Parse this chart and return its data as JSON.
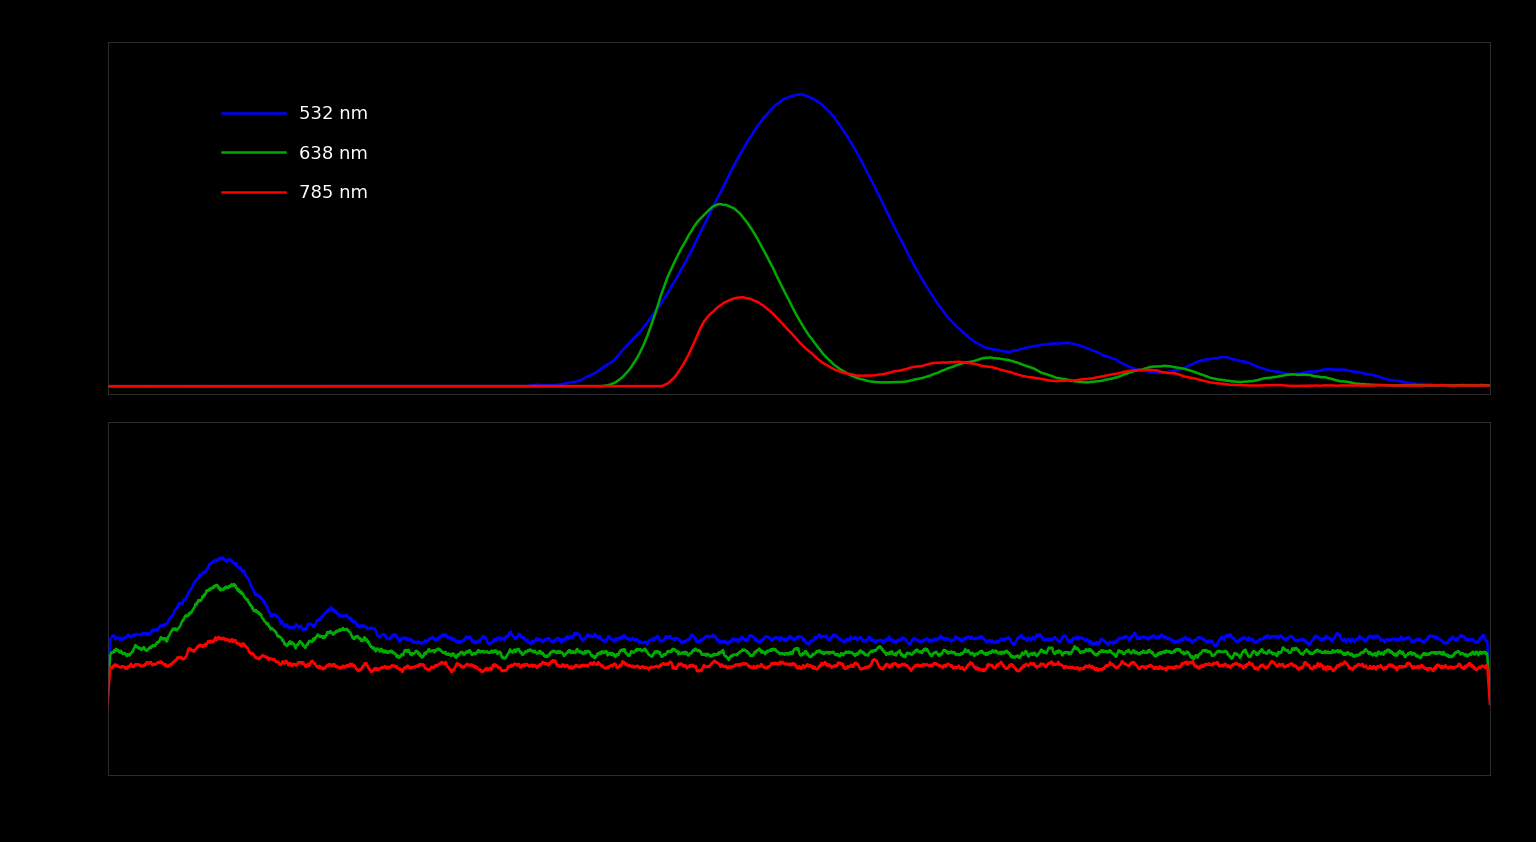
{
  "background_color": "#000000",
  "text_color": "#ffffff",
  "line_colors": [
    "#0000ff",
    "#00aa00",
    "#ff0000"
  ],
  "legend_labels": [
    "532 nm",
    "638 nm",
    "785 nm"
  ],
  "figsize": [
    15.36,
    8.42
  ],
  "dpi": 100
}
